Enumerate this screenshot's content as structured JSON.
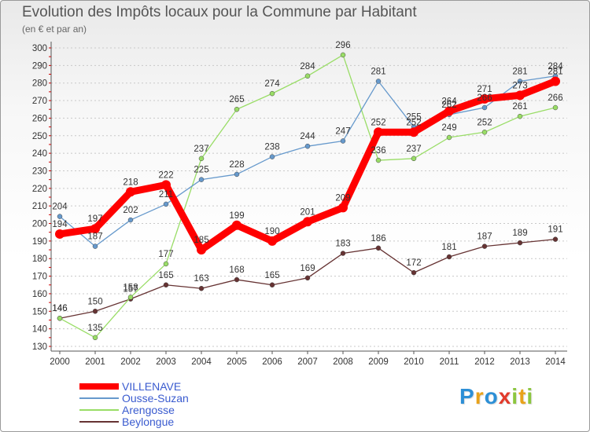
{
  "chart_data": {
    "type": "line",
    "title": "Evolution des Impôts locaux pour la Commune par Habitant",
    "subtitle": "(en € et par an)",
    "xlabel": "",
    "ylabel": "",
    "x": [
      "2000",
      "2001",
      "2002",
      "2003",
      "2004",
      "2005",
      "2006",
      "2007",
      "2008",
      "2009",
      "2010",
      "2011",
      "2012",
      "2013",
      "2014"
    ],
    "ylim": [
      130,
      300
    ],
    "yticks": [
      "130",
      "140",
      "150",
      "160",
      "170",
      "180",
      "190",
      "200",
      "210",
      "220",
      "230",
      "240",
      "250",
      "260",
      "270",
      "280",
      "290",
      "300"
    ],
    "grid": "horizontal dashed",
    "legend_position": "bottom-left",
    "series": [
      {
        "name": "VILLENAVE",
        "color": "#ff0000",
        "values": [
          194,
          197,
          218,
          222,
          185,
          199,
          190,
          201,
          209,
          252,
          252,
          264,
          271,
          273,
          281
        ]
      },
      {
        "name": "Ousse-Suzan",
        "color": "#6699cc",
        "values": [
          204,
          187,
          202,
          211,
          225,
          228,
          238,
          244,
          247,
          281,
          255,
          262,
          266,
          281,
          284
        ]
      },
      {
        "name": "Arengosse",
        "color": "#99dd66",
        "values": [
          146,
          135,
          158,
          177,
          237,
          265,
          274,
          284,
          296,
          236,
          237,
          249,
          252,
          261,
          266
        ]
      },
      {
        "name": "Beylongue",
        "color": "#663333",
        "values": [
          146,
          150,
          157,
          165,
          163,
          168,
          165,
          169,
          183,
          186,
          172,
          181,
          187,
          189,
          191
        ]
      }
    ]
  },
  "logo": {
    "letters": [
      {
        "ch": "P",
        "color": "#2c8fd6"
      },
      {
        "ch": "r",
        "color": "#e8a21a"
      },
      {
        "ch": "o",
        "color": "#2c8fd6"
      },
      {
        "ch": "x",
        "color": "#e23a2b"
      },
      {
        "ch": "i",
        "color": "#8cc63f"
      },
      {
        "ch": "t",
        "color": "#e8a21a"
      },
      {
        "ch": "i",
        "color": "#8cc63f"
      }
    ]
  }
}
